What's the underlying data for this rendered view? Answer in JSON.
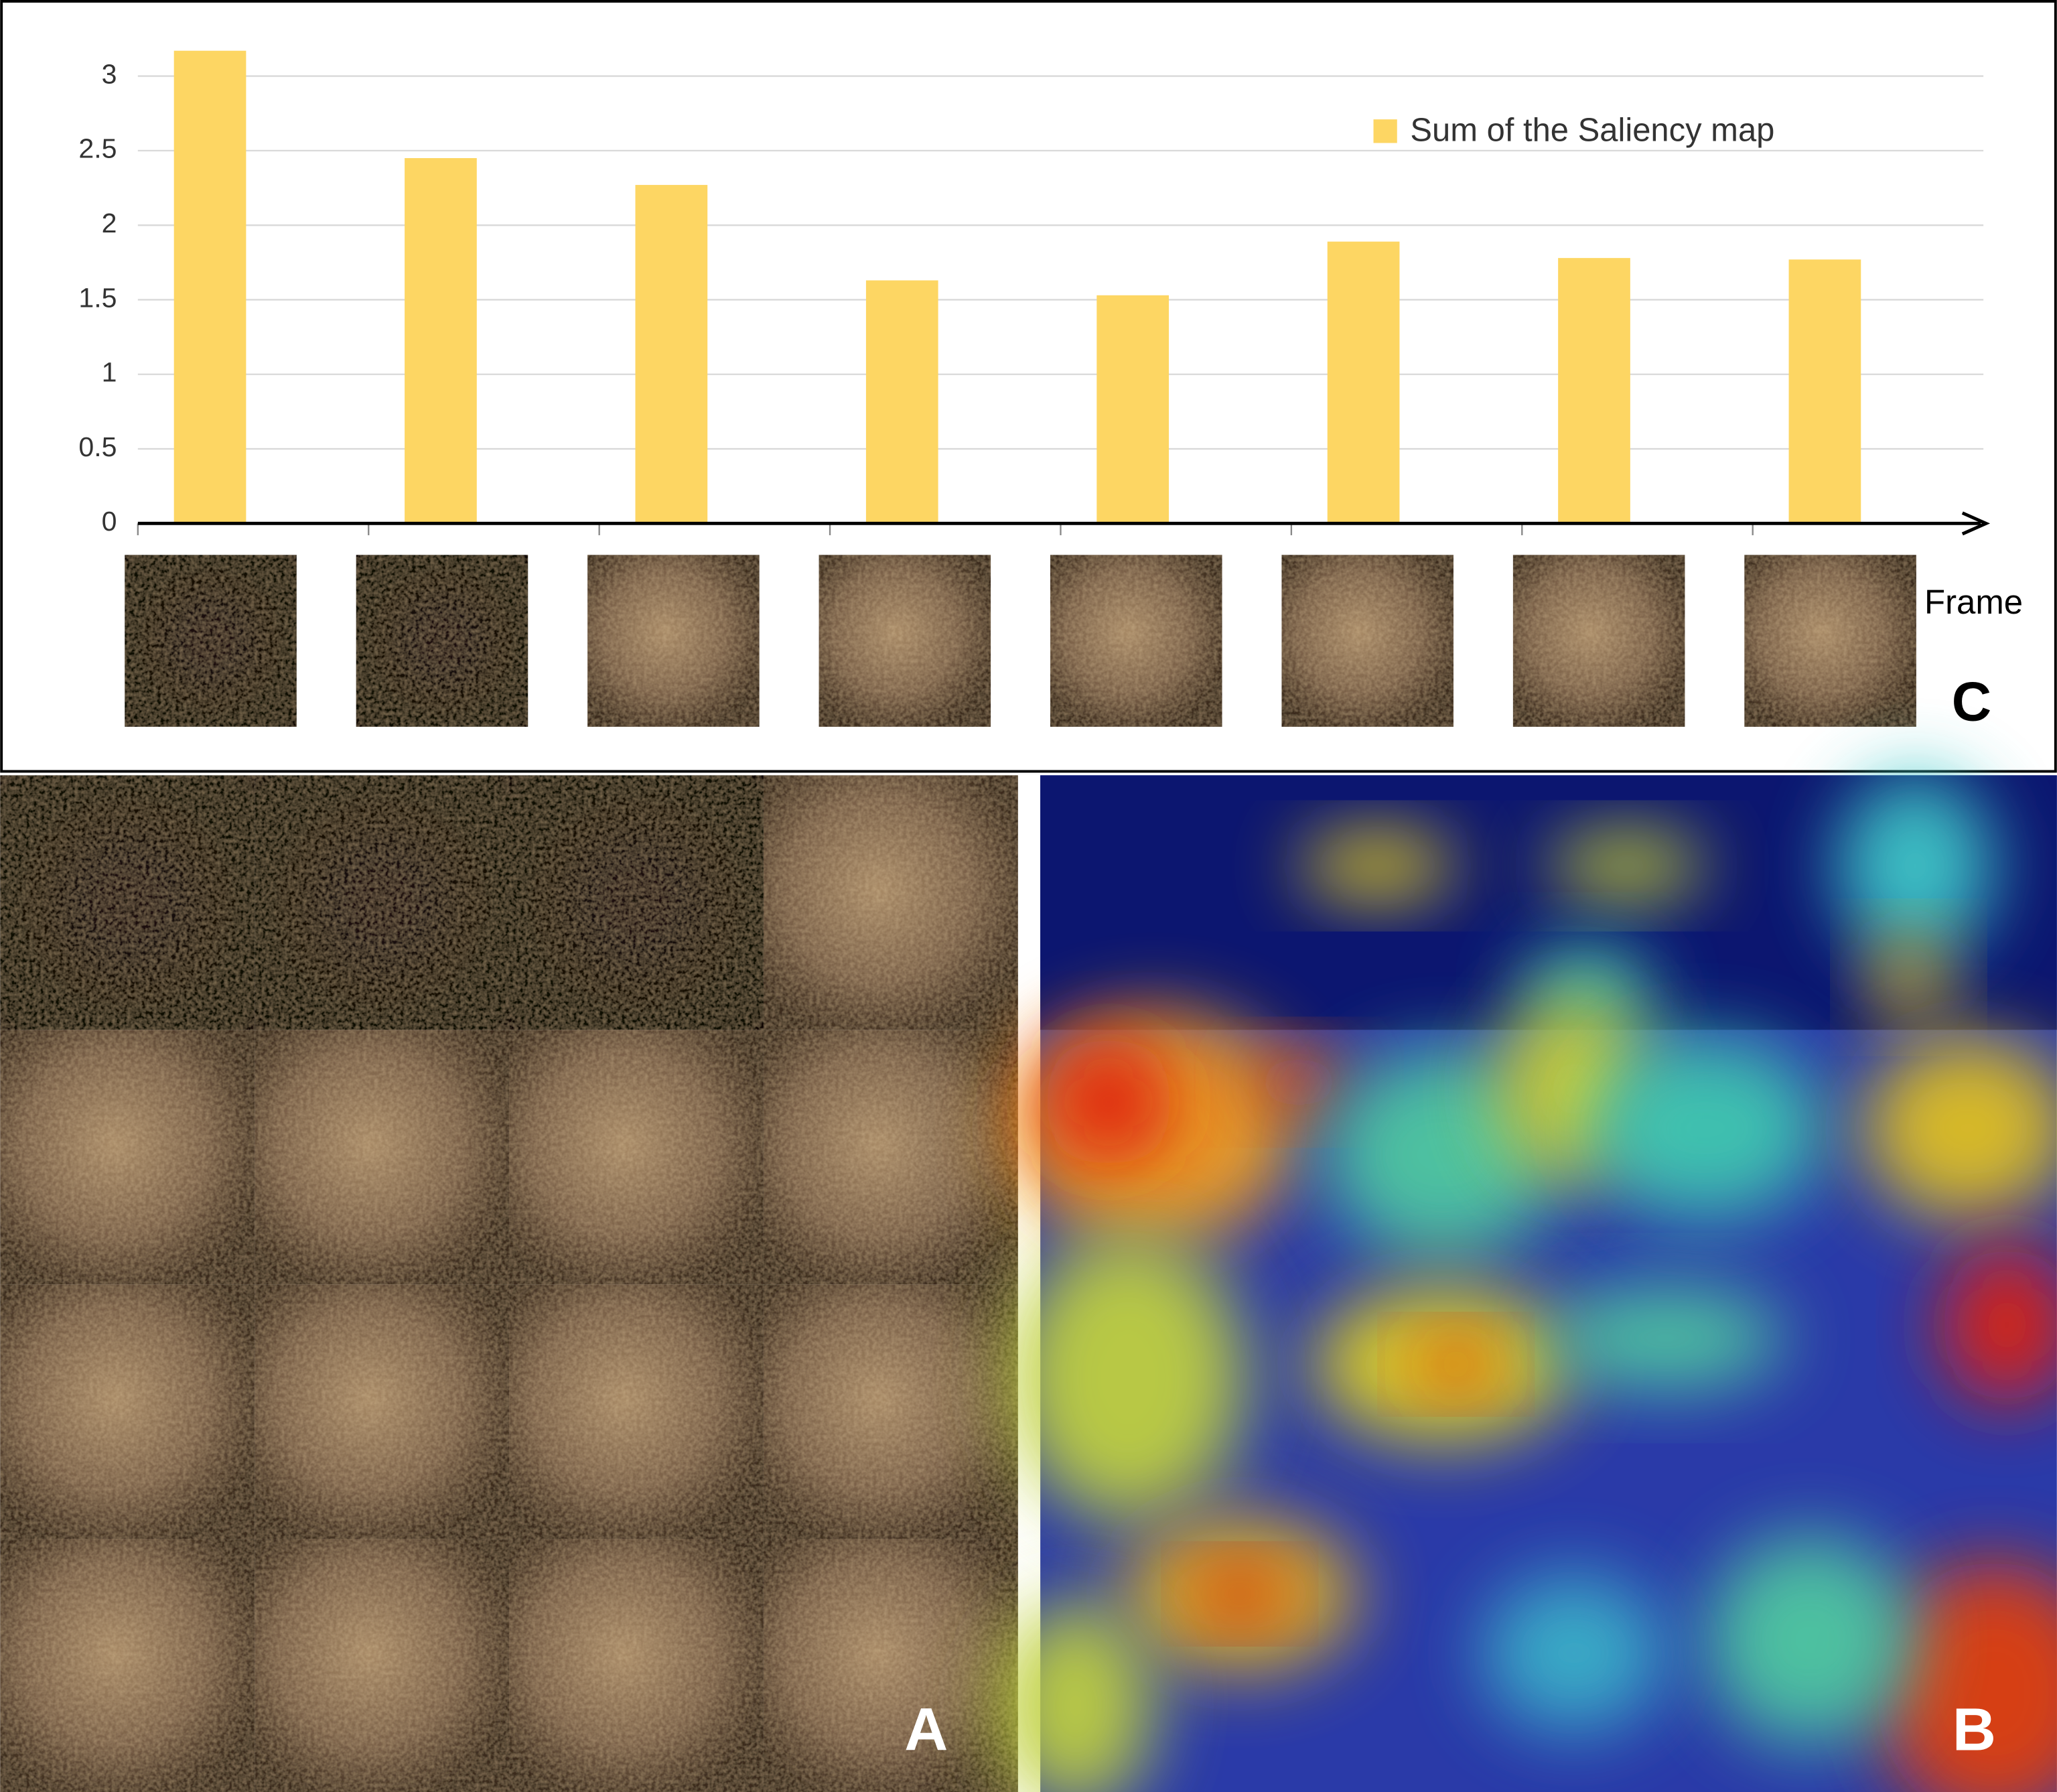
{
  "chart_data": {
    "type": "bar",
    "categories": [
      null,
      null,
      null,
      null,
      null,
      null,
      null,
      null
    ],
    "series": [
      {
        "name": "Sum of the Saliency map",
        "color": "#fdd663",
        "values": [
          3.17,
          2.45,
          2.27,
          1.63,
          1.53,
          1.89,
          1.78,
          1.77
        ]
      }
    ],
    "xlabel": "Frame",
    "ylim": [
      0,
      3.3
    ],
    "yticks": [
      0,
      0.5,
      1,
      1.5,
      2,
      2.5,
      3
    ],
    "grid": true,
    "legend": "top-right",
    "annotations": [
      "C",
      "A",
      "B"
    ]
  }
}
